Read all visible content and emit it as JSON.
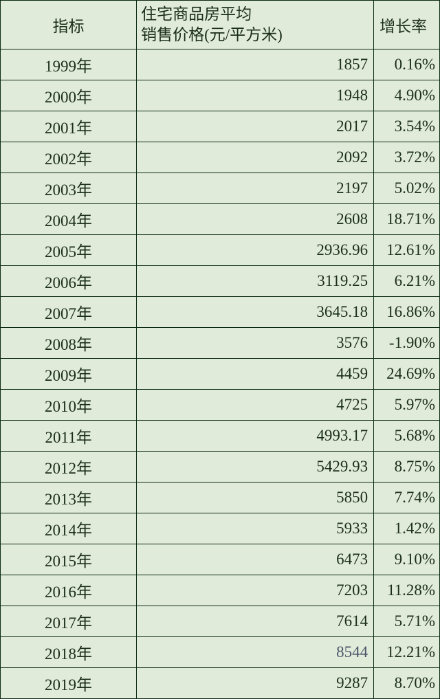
{
  "table": {
    "background_color": "#e1ebda",
    "border_color": "#0a2914",
    "text_color": "#1a2e1a",
    "font_family": "SimSun",
    "font_size_pt": 18,
    "header": {
      "col1": "指标",
      "col2_line1": "住宅商品房平均",
      "col2_line2": "销售价格(元/平方米)",
      "col3": "增长率"
    },
    "columns": [
      "指标",
      "住宅商品房平均销售价格(元/平方米)",
      "增长率"
    ],
    "column_widths_pct": [
      31,
      54,
      15
    ],
    "column_alignment": [
      "center",
      "right",
      "right"
    ],
    "rows": [
      {
        "year": "1999年",
        "price": "1857",
        "rate": "0.16%"
      },
      {
        "year": "2000年",
        "price": "1948",
        "rate": "4.90%"
      },
      {
        "year": "2001年",
        "price": "2017",
        "rate": "3.54%"
      },
      {
        "year": "2002年",
        "price": "2092",
        "rate": "3.72%"
      },
      {
        "year": "2003年",
        "price": "2197",
        "rate": "5.02%"
      },
      {
        "year": "2004年",
        "price": "2608",
        "rate": "18.71%"
      },
      {
        "year": "2005年",
        "price": "2936.96",
        "rate": "12.61%"
      },
      {
        "year": "2006年",
        "price": "3119.25",
        "rate": "6.21%"
      },
      {
        "year": "2007年",
        "price": "3645.18",
        "rate": "16.86%"
      },
      {
        "year": "2008年",
        "price": "3576",
        "rate": "-1.90%"
      },
      {
        "year": "2009年",
        "price": "4459",
        "rate": "24.69%"
      },
      {
        "year": "2010年",
        "price": "4725",
        "rate": "5.97%"
      },
      {
        "year": "2011年",
        "price": "4993.17",
        "rate": "5.68%"
      },
      {
        "year": "2012年",
        "price": "5429.93",
        "rate": "8.75%"
      },
      {
        "year": "2013年",
        "price": "5850",
        "rate": "7.74%"
      },
      {
        "year": "2014年",
        "price": "5933",
        "rate": "1.42%"
      },
      {
        "year": "2015年",
        "price": "6473",
        "rate": "9.10%"
      },
      {
        "year": "2016年",
        "price": "7203",
        "rate": "11.28%"
      },
      {
        "year": "2017年",
        "price": "7614",
        "rate": "5.71%"
      },
      {
        "year": "2018年",
        "price": "8544",
        "rate": "12.21%",
        "special_color": "#4a5568"
      },
      {
        "year": "2019年",
        "price": "9287",
        "rate": "8.70%"
      }
    ]
  }
}
